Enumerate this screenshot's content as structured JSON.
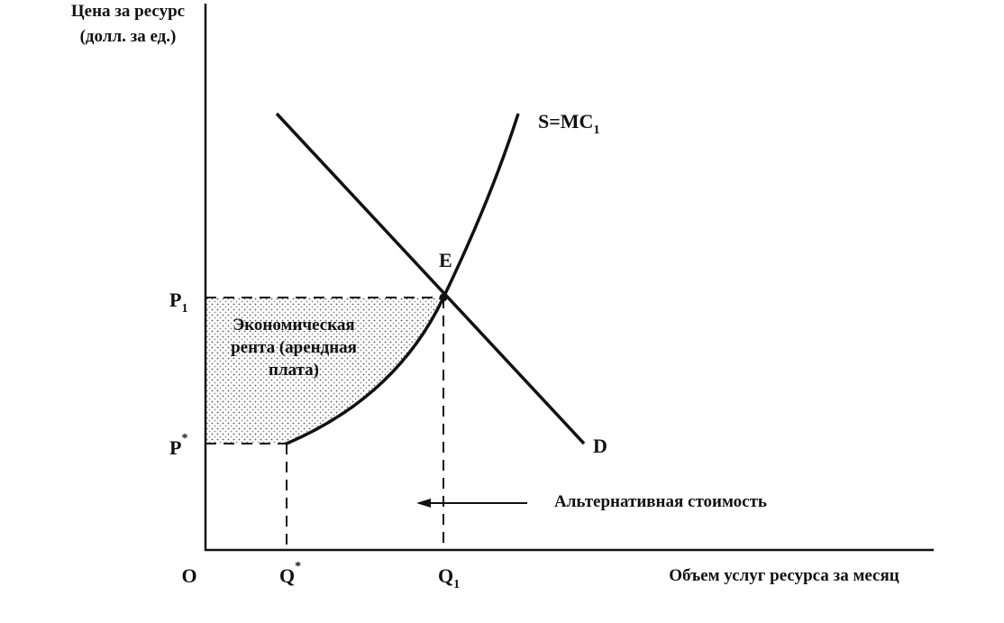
{
  "axes": {
    "y_label": [
      "Цена за ресурс",
      "(долл. за ед.)"
    ],
    "x_label": "Объем услуг ресурса за месяц",
    "origin": "O"
  },
  "curves": {
    "supply": {
      "main": "S=MC",
      "sub": "1"
    },
    "demand": "D"
  },
  "points": {
    "equilibrium": "E"
  },
  "prices": {
    "p1": {
      "main": "P",
      "sub": "1"
    },
    "p_star": {
      "main": "P",
      "sup": "*"
    }
  },
  "quantities": {
    "q_star": {
      "main": "Q",
      "sup": "*"
    },
    "q1": {
      "main": "Q",
      "sub": "1"
    }
  },
  "area": {
    "label": [
      "Экономическая",
      "рента (арендная",
      "плата)"
    ]
  },
  "annotation": "Альтернативная стоимость"
}
